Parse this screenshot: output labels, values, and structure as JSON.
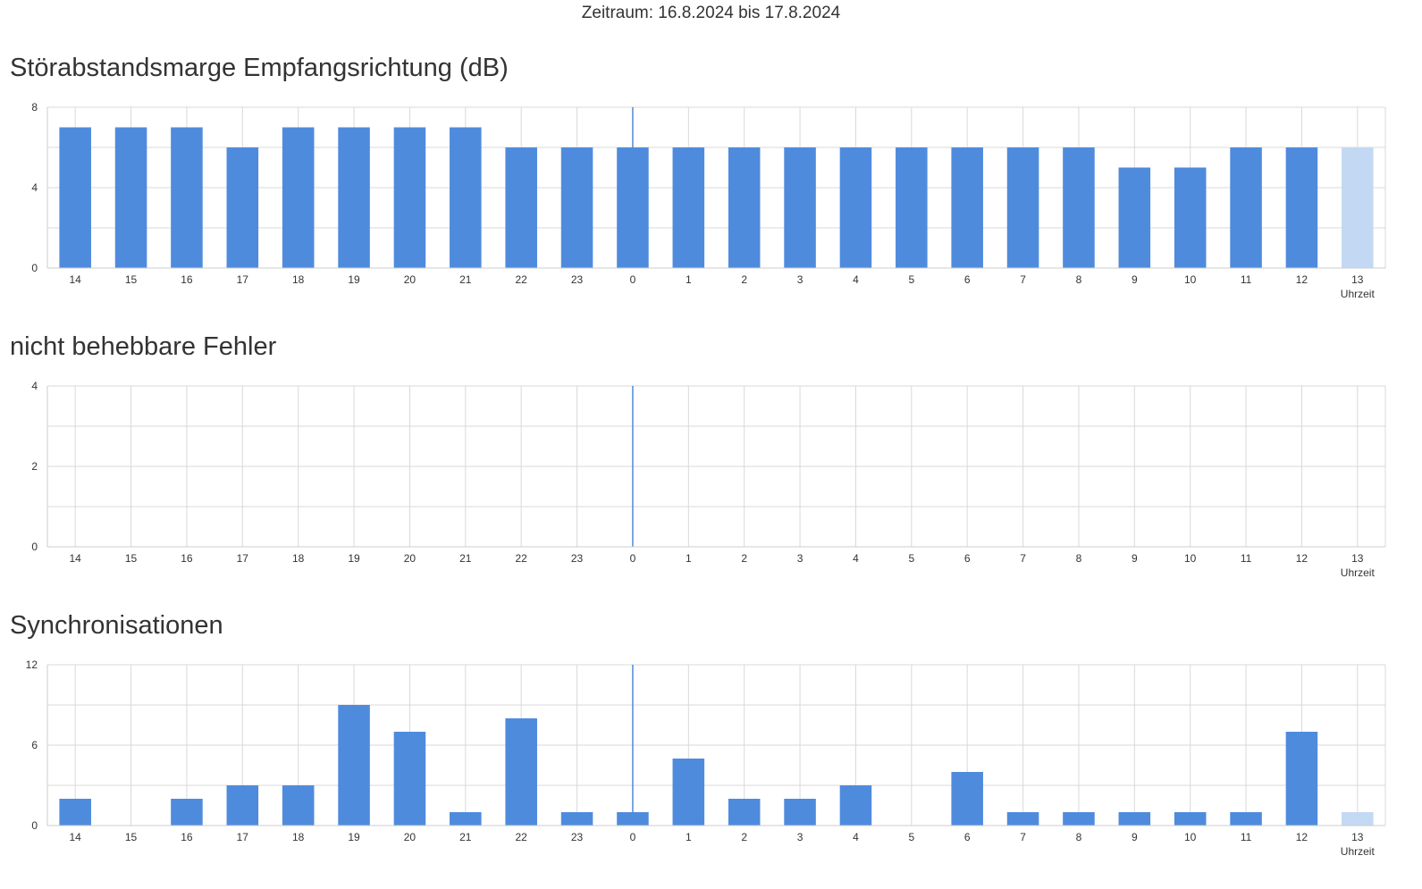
{
  "header": {
    "period": "Zeitraum: 16.8.2024 bis 17.8.2024"
  },
  "colors": {
    "bar": "#4f8bdd",
    "bar_current": "#c3d9f3",
    "grid": "#d9d9d9",
    "axis": "#cccccc",
    "midnight_marker": "#4f8bdd"
  },
  "chart_data": [
    {
      "type": "bar",
      "title": "Störabstandsmarge Empfangsrichtung (dB)",
      "xlabel": "Uhrzeit",
      "ylabel": "",
      "categories": [
        "14",
        "15",
        "16",
        "17",
        "18",
        "19",
        "20",
        "21",
        "22",
        "23",
        "0",
        "1",
        "2",
        "3",
        "4",
        "5",
        "6",
        "7",
        "8",
        "9",
        "10",
        "11",
        "12",
        "13"
      ],
      "values": [
        7,
        7,
        7,
        6,
        7,
        7,
        7,
        7,
        6,
        6,
        6,
        6,
        6,
        6,
        6,
        6,
        6,
        6,
        6,
        5,
        5,
        6,
        6,
        6
      ],
      "ylim": [
        0,
        8
      ],
      "yticks": [
        0,
        4,
        8
      ],
      "highlight_last": true,
      "marker_category": "0",
      "grid": true
    },
    {
      "type": "bar",
      "title": "nicht behebbare Fehler",
      "xlabel": "Uhrzeit",
      "ylabel": "",
      "categories": [
        "14",
        "15",
        "16",
        "17",
        "18",
        "19",
        "20",
        "21",
        "22",
        "23",
        "0",
        "1",
        "2",
        "3",
        "4",
        "5",
        "6",
        "7",
        "8",
        "9",
        "10",
        "11",
        "12",
        "13"
      ],
      "values": [
        0,
        0,
        0,
        0,
        0,
        0,
        0,
        0,
        0,
        0,
        0,
        0,
        0,
        0,
        0,
        0,
        0,
        0,
        0,
        0,
        0,
        0,
        0,
        0
      ],
      "ylim": [
        0,
        4
      ],
      "yticks": [
        0,
        2,
        4
      ],
      "highlight_last": true,
      "marker_category": "0",
      "grid": true
    },
    {
      "type": "bar",
      "title": "Synchronisationen",
      "xlabel": "Uhrzeit",
      "ylabel": "",
      "categories": [
        "14",
        "15",
        "16",
        "17",
        "18",
        "19",
        "20",
        "21",
        "22",
        "23",
        "0",
        "1",
        "2",
        "3",
        "4",
        "5",
        "6",
        "7",
        "8",
        "9",
        "10",
        "11",
        "12",
        "13"
      ],
      "values": [
        2,
        0,
        2,
        3,
        3,
        9,
        7,
        1,
        8,
        1,
        1,
        5,
        2,
        2,
        3,
        0,
        4,
        1,
        1,
        1,
        1,
        1,
        7,
        1
      ],
      "ylim": [
        0,
        12
      ],
      "yticks": [
        0,
        6,
        12
      ],
      "highlight_last": true,
      "marker_category": "0",
      "grid": true
    }
  ]
}
